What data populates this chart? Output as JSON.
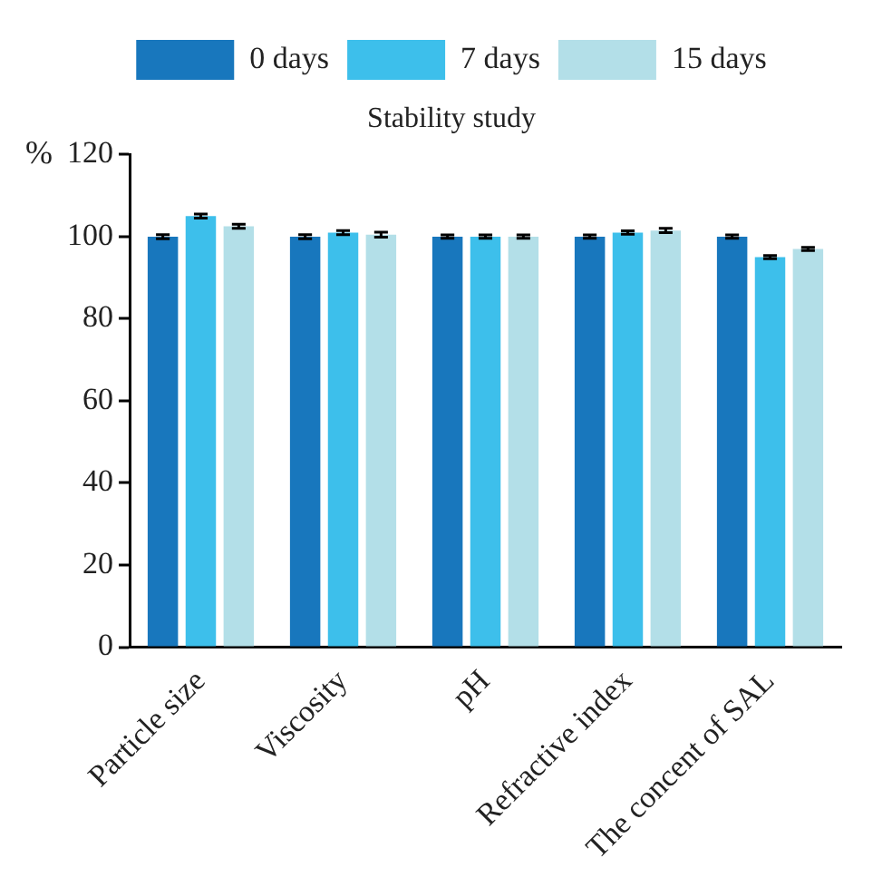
{
  "chart_data": {
    "type": "bar",
    "title": "Stability study",
    "ylabel": "%",
    "categories": [
      "Particle size",
      "Viscosity",
      "pH",
      "Refractive index",
      "The concent of SAL"
    ],
    "series": [
      {
        "name": "0 days",
        "color": "#1877bd",
        "values": [
          100,
          100,
          100,
          100,
          100
        ],
        "errors": [
          0.5,
          0.5,
          0.4,
          0.4,
          0.4
        ]
      },
      {
        "name": "7 days",
        "color": "#3dbfeb",
        "values": [
          105,
          101,
          100,
          101,
          95
        ],
        "errors": [
          0.5,
          0.5,
          0.4,
          0.4,
          0.4
        ]
      },
      {
        "name": "15 days",
        "color": "#b3dfe8",
        "values": [
          102.5,
          100.5,
          100,
          101.5,
          97
        ],
        "errors": [
          0.5,
          0.6,
          0.4,
          0.5,
          0.4
        ]
      }
    ],
    "ylim": [
      0,
      120
    ],
    "yticks": [
      0,
      20,
      40,
      60,
      80,
      100,
      120
    ],
    "grid": false,
    "legend": "top"
  }
}
